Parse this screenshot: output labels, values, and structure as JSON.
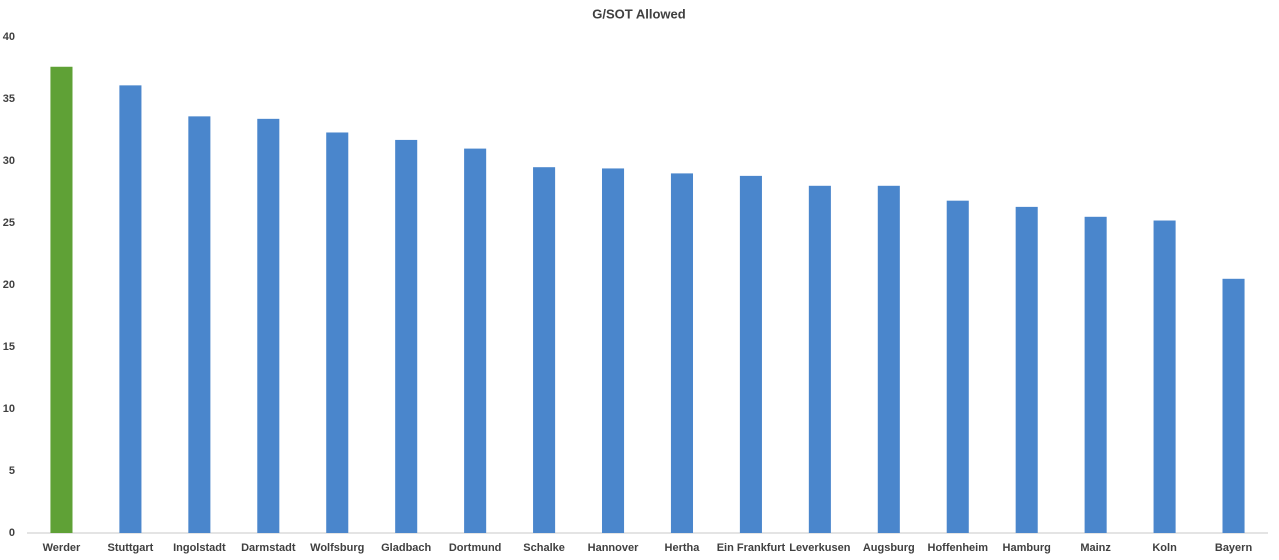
{
  "chart_data": {
    "type": "bar",
    "title": "G/SOT Allowed",
    "categories": [
      "Werder",
      "Stuttgart",
      "Ingolstadt",
      "Darmstadt",
      "Wolfsburg",
      "Gladbach",
      "Dortmund",
      "Schalke",
      "Hannover",
      "Hertha",
      "Ein Frankfurt",
      "Leverkusen",
      "Augsburg",
      "Hoffenheim",
      "Hamburg",
      "Mainz",
      "Koln",
      "Bayern"
    ],
    "values": [
      37.6,
      36.1,
      33.6,
      33.4,
      32.3,
      31.7,
      31.0,
      29.5,
      29.4,
      29.0,
      28.8,
      28.0,
      28.0,
      26.8,
      26.3,
      25.5,
      25.2,
      20.5
    ],
    "colors": [
      "#5fa136",
      "#4a86cc",
      "#4a86cc",
      "#4a86cc",
      "#4a86cc",
      "#4a86cc",
      "#4a86cc",
      "#4a86cc",
      "#4a86cc",
      "#4a86cc",
      "#4a86cc",
      "#4a86cc",
      "#4a86cc",
      "#4a86cc",
      "#4a86cc",
      "#4a86cc",
      "#4a86cc",
      "#4a86cc"
    ],
    "ylim": [
      0,
      40
    ],
    "yticks": [
      0,
      5,
      10,
      15,
      20,
      25,
      30,
      35,
      40
    ],
    "grid": false
  }
}
